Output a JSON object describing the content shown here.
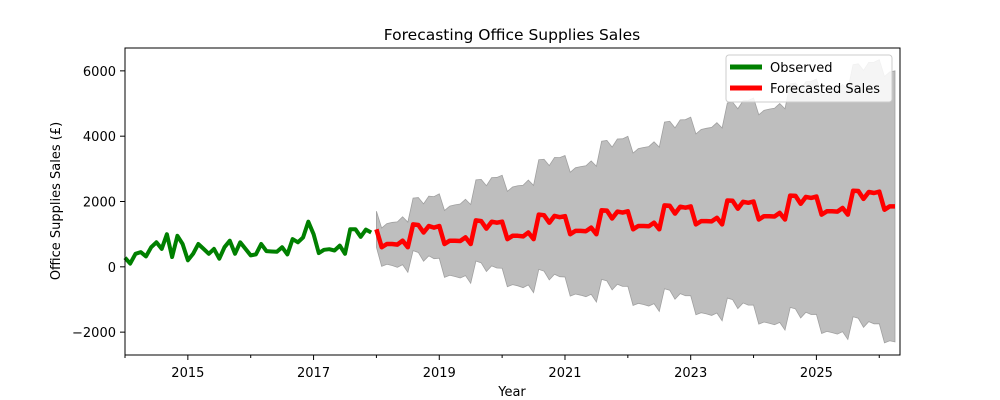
{
  "chart_data": {
    "type": "line",
    "title": "Forecasting Office Supplies Sales",
    "xlabel": "Year",
    "ylabel": "Office Supplies Sales (£)",
    "xlim": [
      2014.0,
      2026.33
    ],
    "ylim": [
      -2700,
      6700
    ],
    "x_ticks": [
      2015,
      2017,
      2019,
      2021,
      2023,
      2025
    ],
    "x_minor_ticks": [
      2014,
      2016,
      2018,
      2020,
      2022,
      2024,
      2026
    ],
    "y_ticks": [
      -2000,
      0,
      2000,
      4000,
      6000
    ],
    "grid": false,
    "legend": {
      "position": "top-right",
      "entries": [
        "Observed",
        "Forecasted Sales"
      ]
    },
    "colors": {
      "observed": "#008000",
      "forecast": "#ff0000",
      "band": "#bebebe",
      "band_edge": "#a0a0a0"
    },
    "observed": {
      "name": "Observed",
      "start": 2014.0,
      "step": 0.0833333,
      "values": [
        280,
        100,
        400,
        450,
        320,
        600,
        750,
        550,
        1000,
        300,
        950,
        700,
        200,
        400,
        700,
        550,
        400,
        550,
        250,
        600,
        800,
        400,
        750,
        550,
        350,
        380,
        700,
        480,
        470,
        460,
        600,
        380,
        850,
        750,
        900,
        1380,
        1000,
        420,
        520,
        540,
        500,
        650,
        400,
        1150,
        1150,
        920,
        1140,
        1050
      ]
    },
    "forecast": {
      "name": "Forecasted Sales",
      "start": 2018.0,
      "step": 0.0833333,
      "values": [
        1150,
        600,
        700,
        700,
        680,
        800,
        600,
        1300,
        1280,
        1050,
        1250,
        1200,
        1250,
        700,
        800,
        800,
        790,
        900,
        700,
        1420,
        1400,
        1170,
        1380,
        1350,
        1380,
        850,
        950,
        950,
        930,
        1050,
        850,
        1600,
        1580,
        1350,
        1560,
        1520,
        1550,
        1000,
        1100,
        1100,
        1090,
        1200,
        1000,
        1730,
        1720,
        1480,
        1690,
        1660,
        1700,
        1150,
        1250,
        1250,
        1240,
        1350,
        1150,
        1880,
        1870,
        1630,
        1840,
        1810,
        1850,
        1300,
        1400,
        1400,
        1390,
        1500,
        1300,
        2030,
        2020,
        1780,
        1990,
        1960,
        2000,
        1450,
        1550,
        1550,
        1540,
        1650,
        1450,
        2180,
        2170,
        1930,
        2140,
        2110,
        2150,
        1600,
        1700,
        1700,
        1690,
        1800,
        1600,
        2330,
        2320,
        2080,
        2290,
        2260,
        2300,
        1750,
        1850,
        1850
      ]
    },
    "confidence_band": {
      "name": "Confidence interval",
      "start_half_width": 550,
      "end_half_width": 4150
    }
  }
}
